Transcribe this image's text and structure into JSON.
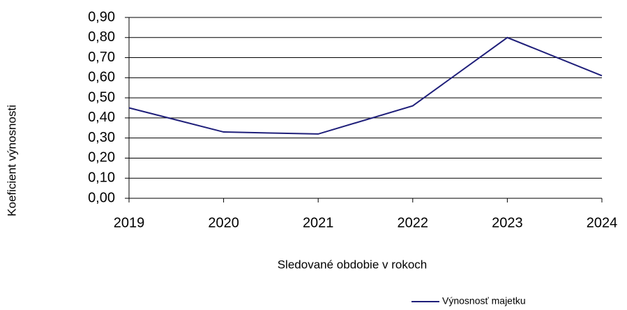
{
  "chart_data": {
    "type": "line",
    "x_label": "Sledované obdobie v rokoch",
    "y_label": "Koeficient výnosnosti",
    "categories": [
      "2019",
      "2020",
      "2021",
      "2022",
      "2023",
      "2024"
    ],
    "series": [
      {
        "name": "Výnosnosť majetku",
        "color": "#1f1f7a",
        "values": [
          0.45,
          0.33,
          0.32,
          0.46,
          0.8,
          0.61
        ]
      }
    ],
    "ylim": [
      0,
      0.9
    ],
    "yticks": [
      {
        "value": 0,
        "label": "0,00"
      },
      {
        "value": 0.1,
        "label": "0,10"
      },
      {
        "value": 0.2,
        "label": "0,20"
      },
      {
        "value": 0.3,
        "label": "0,30"
      },
      {
        "value": 0.4,
        "label": "0,40"
      },
      {
        "value": 0.5,
        "label": "0,50"
      },
      {
        "value": 0.6,
        "label": "0,60"
      },
      {
        "value": 0.7,
        "label": "0,70"
      },
      {
        "value": 0.8,
        "label": "0,80"
      },
      {
        "value": 0.9,
        "label": "0,90"
      }
    ],
    "grid": true,
    "legend": "bottom-right"
  }
}
